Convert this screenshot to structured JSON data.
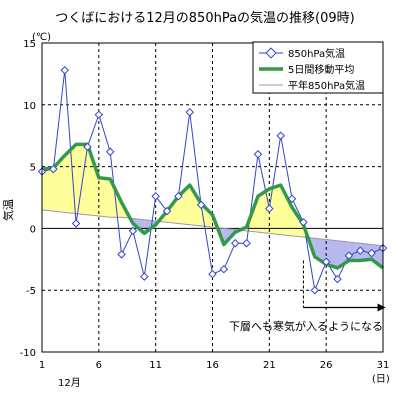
{
  "chart_data": {
    "type": "line",
    "title": "つくばにおける12月の850hPaの気温の推移(09時)",
    "ylabel": "気温",
    "yunit": "(℃)",
    "xunit": "(日)",
    "month_label": "12月",
    "ylim": [
      -10,
      15
    ],
    "xlim": [
      1,
      31
    ],
    "yticks": [
      -10,
      -5,
      0,
      5,
      10,
      15
    ],
    "xticks": [
      1,
      6,
      11,
      16,
      21,
      26,
      31
    ],
    "grid": true,
    "legend_position": "top-right",
    "x": [
      1,
      2,
      3,
      4,
      5,
      6,
      7,
      8,
      9,
      10,
      11,
      12,
      13,
      14,
      15,
      16,
      17,
      18,
      19,
      20,
      21,
      22,
      23,
      24,
      25,
      26,
      27,
      28,
      29,
      30,
      31
    ],
    "series": [
      {
        "name": "850hPa気温",
        "color": "#3344cc",
        "values": [
          4.6,
          4.8,
          12.8,
          0.4,
          6.6,
          9.2,
          6.2,
          -2.1,
          -0.2,
          -3.9,
          2.6,
          1.4,
          2.6,
          9.4,
          1.9,
          -3.7,
          -3.3,
          -1.2,
          -1.2,
          6.0,
          1.6,
          7.5,
          2.4,
          0.5,
          -5.0,
          -2.7,
          -4.1,
          -2.2,
          -1.8,
          -2.0,
          -1.6
        ]
      },
      {
        "name": "5日間移動平均",
        "color": "#33994d",
        "values": [
          4.8,
          4.9,
          5.9,
          6.8,
          6.8,
          4.1,
          4.0,
          2.1,
          0.4,
          -0.4,
          0.3,
          1.4,
          2.6,
          3.5,
          2.0,
          1.1,
          -1.3,
          -0.3,
          0.1,
          2.6,
          3.2,
          3.5,
          1.7,
          0.3,
          -2.3,
          -2.9,
          -3.2,
          -2.6,
          -2.6,
          -2.5,
          -3.2
        ]
      },
      {
        "name": "平年850hPa気温",
        "color": "#9999aa",
        "values": [
          1.5,
          1.4,
          1.3,
          1.2,
          1.1,
          1.0,
          0.9,
          0.9,
          0.8,
          0.7,
          0.6,
          0.5,
          0.4,
          0.3,
          0.2,
          0.1,
          0.0,
          -0.1,
          -0.2,
          -0.3,
          -0.4,
          -0.5,
          -0.6,
          -0.7,
          -0.8,
          -0.9,
          -1.0,
          -1.1,
          -1.2,
          -1.3,
          -1.4
        ]
      }
    ],
    "annotation": "下層へも寒気が入るようになる",
    "annotation_from_day": 24
  },
  "colors": {
    "warm_fill": "#ffff99",
    "cold_fill": "#b8b8f0",
    "grid": "#000000"
  }
}
